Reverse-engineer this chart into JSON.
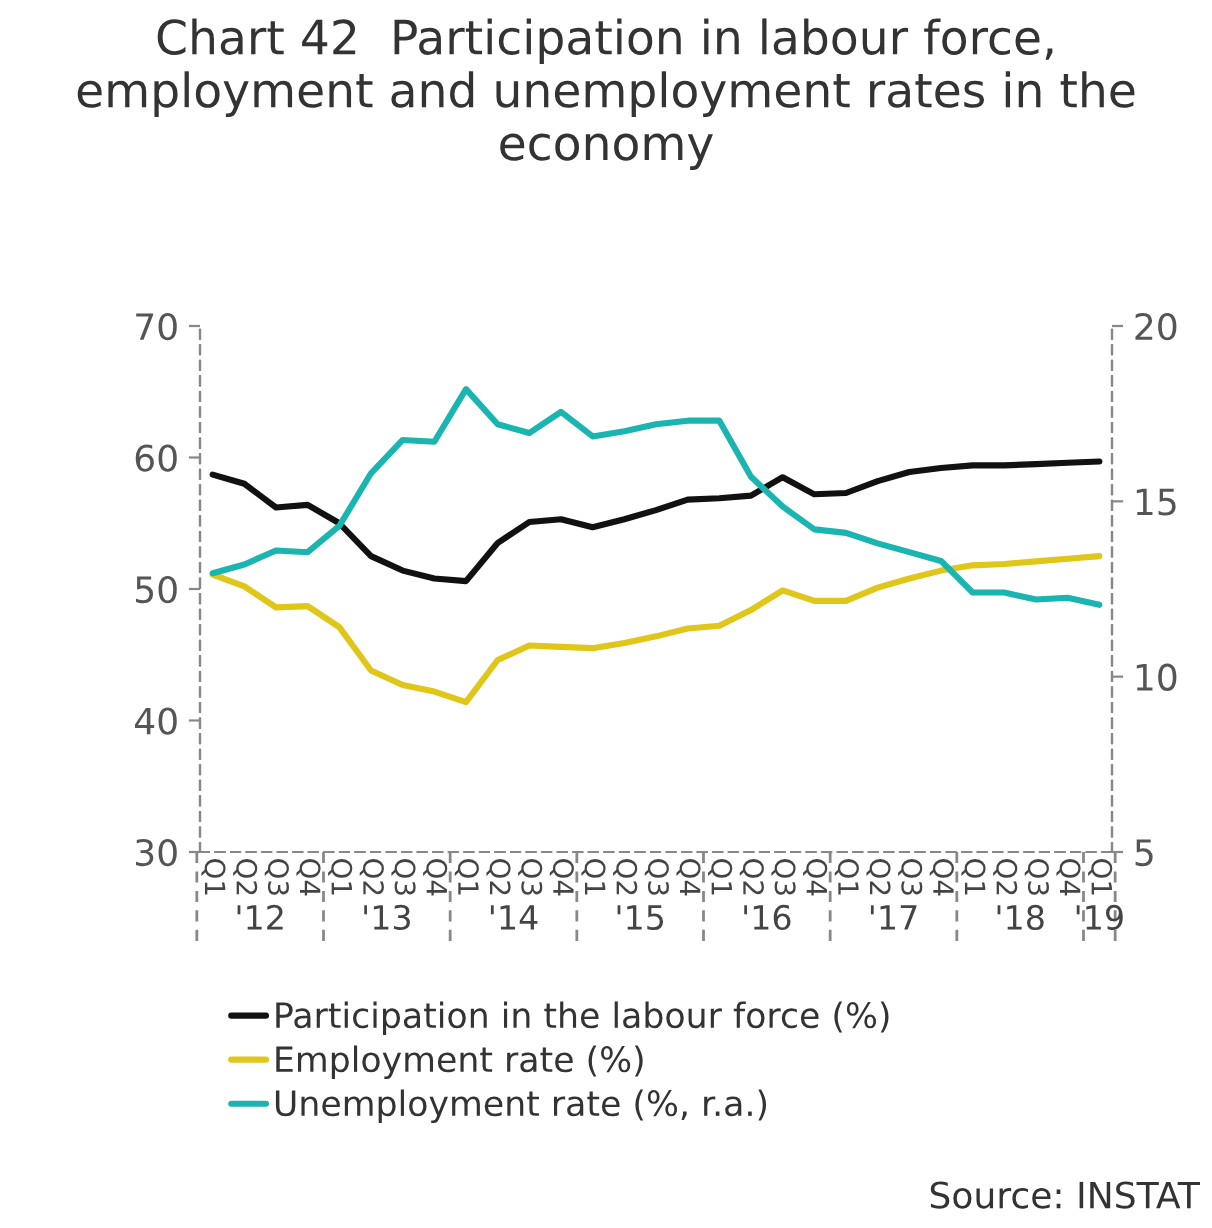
{
  "chart_data": {
    "type": "line",
    "title": "Chart 42  Participation in labour force,\nemployment and unemployment rates in the\neconomy",
    "categories": [
      "Q1",
      "Q2",
      "Q3",
      "Q4",
      "Q1",
      "Q2",
      "Q3",
      "Q4",
      "Q1",
      "Q2",
      "Q3",
      "Q4",
      "Q1",
      "Q2",
      "Q3",
      "Q4",
      "Q1",
      "Q2",
      "Q3",
      "Q4",
      "Q1",
      "Q2",
      "Q3",
      "Q4",
      "Q1",
      "Q2",
      "Q3",
      "Q4",
      "Q1"
    ],
    "series": [
      {
        "name": "Participation in the labour force (%)",
        "color": "#111111",
        "values": [
          58.7,
          58.0,
          56.2,
          56.4,
          55.0,
          52.5,
          51.4,
          50.8,
          50.6,
          53.5,
          55.1,
          55.3,
          54.7,
          55.3,
          56.0,
          56.8,
          56.9,
          57.1,
          58.5,
          57.2,
          57.3,
          58.2,
          58.9,
          59.2,
          59.4,
          59.4,
          59.5,
          59.6,
          59.7
        ]
      },
      {
        "name": "Employment rate (%)",
        "color": "#e0c619",
        "values": [
          51.1,
          50.2,
          48.6,
          48.7,
          47.1,
          43.8,
          42.7,
          42.2,
          41.4,
          44.6,
          45.7,
          45.6,
          45.5,
          45.9,
          46.4,
          47.0,
          47.2,
          48.4,
          49.9,
          49.1,
          49.1,
          50.1,
          50.8,
          51.4,
          51.8,
          51.9,
          52.1,
          52.3,
          52.5
        ]
      },
      {
        "name": "Unemployment rate (%, r.a.)",
        "color": "#1ab5b0",
        "axis": "y2",
        "values": [
          12.95,
          13.2,
          13.6,
          13.55,
          14.3,
          15.8,
          16.75,
          16.7,
          18.2,
          17.2,
          16.95,
          17.55,
          16.85,
          17.0,
          17.2,
          17.3,
          17.3,
          15.7,
          14.85,
          14.2,
          14.1,
          13.8,
          13.55,
          13.3,
          12.4,
          12.4,
          12.2,
          12.25,
          12.05
        ]
      }
    ],
    "ylim": [
      30,
      70
    ],
    "yticks": [
      30,
      40,
      50,
      60,
      70
    ],
    "y2lim": [
      5,
      20
    ],
    "y2ticks": [
      5,
      10,
      15,
      20
    ],
    "legend": "bottom",
    "grid": false,
    "annotations": [
      "'12",
      "'13",
      "'14",
      "'15",
      "'16",
      "'17",
      "'18",
      "'19",
      "Source: INSTAT"
    ]
  }
}
